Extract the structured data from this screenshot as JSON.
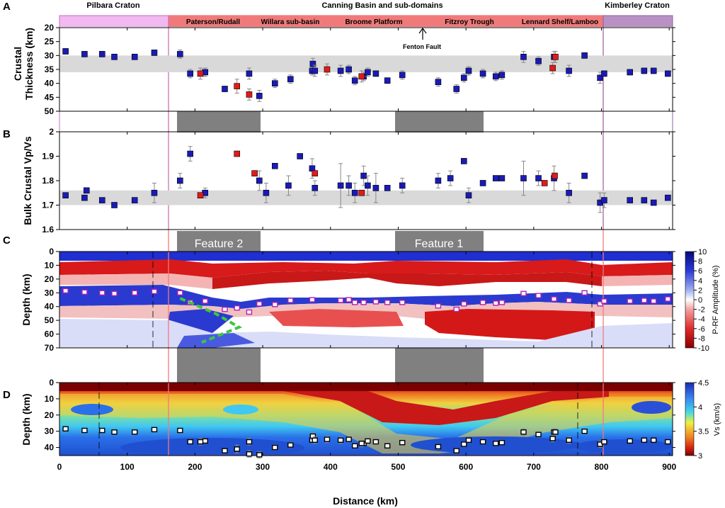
{
  "figure": {
    "panel_letters": [
      "A",
      "B",
      "C",
      "D"
    ],
    "top_labels": {
      "pilbara": "Pilbara Craton",
      "canning": "Canning  Basin  and  sub-domains",
      "kimberley": "Kimberley Craton"
    },
    "subdomains": [
      "Paterson/Rudall",
      "Willara sub-basin",
      "Broome Platform",
      "Fitzroy Trough",
      "Lennard Shelf/Lamboo"
    ],
    "fenton_fault": "Fenton Fault",
    "feature_labels": [
      "Feature 2",
      "Feature 1"
    ],
    "colors": {
      "pilbara": "#f2b8f0",
      "canning": "#f07a7a",
      "kimberley": "#b892c4",
      "marker_blue": "#1a1ab8",
      "marker_red": "#e21a1a",
      "feature_band": "#808080",
      "trace_line": "#3cc83c"
    }
  },
  "chart_data": [
    {
      "panel": "A",
      "type": "scatter",
      "ylabel": "Crustal\nThickness (km)",
      "xlabel": "",
      "xlim": [
        0,
        905
      ],
      "ylim": [
        50,
        20
      ],
      "yticks": [
        20,
        25,
        30,
        35,
        40,
        45,
        50
      ],
      "reference_band": [
        30,
        36
      ],
      "series": [
        {
          "color": "blue",
          "x": [
            9,
            37,
            63,
            81,
            111,
            140,
            178,
            193,
            215,
            244,
            280,
            295,
            318,
            341,
            373,
            374,
            377,
            415,
            427,
            436,
            449,
            455,
            467,
            484,
            506,
            559,
            586,
            597,
            604,
            625,
            644,
            653,
            685,
            707,
            730,
            752,
            775,
            798,
            804,
            842,
            863,
            877,
            898
          ],
          "y": [
            28.5,
            29.5,
            29.5,
            30.5,
            30.5,
            29,
            29.5,
            36.5,
            36,
            42,
            36.5,
            44.5,
            40,
            38.5,
            35.5,
            33,
            35.5,
            35.5,
            35,
            39,
            37.5,
            36,
            36.5,
            39,
            37,
            39.5,
            42,
            38,
            35.5,
            36.5,
            37.5,
            37,
            30.5,
            32,
            30.5,
            35.5,
            30,
            38,
            36.5,
            36,
            35.5,
            35.5,
            36.5
          ],
          "error": [
            1.0,
            1.0,
            1.0,
            1.0,
            1.0,
            1.0,
            1.5,
            1.5,
            1.5,
            1.0,
            2.0,
            2.0,
            1.5,
            1.5,
            1.5,
            2.0,
            2.0,
            2.0,
            1.5,
            1.5,
            1.5,
            1.5,
            1.0,
            1.0,
            1.5,
            1.5,
            1.5,
            1.5,
            1.5,
            1.5,
            1.5,
            1.5,
            2.0,
            1.5,
            2.0,
            2.0,
            1.0,
            2.0,
            1.0,
            1.0,
            1.0,
            1.0,
            1.0
          ]
        },
        {
          "color": "red",
          "x": [
            208,
            262,
            280,
            395,
            446,
            728,
            732
          ],
          "y": [
            36.5,
            41,
            44,
            35,
            37.5,
            34.5,
            30.5
          ],
          "error": [
            2.0,
            2.5,
            2.0,
            2.0,
            2.0,
            2.0,
            2.0
          ]
        }
      ]
    },
    {
      "panel": "B",
      "type": "scatter",
      "ylabel": "Bulk Crustal Vp/Vs",
      "xlabel": "",
      "xlim": [
        0,
        905
      ],
      "ylim": [
        1.6,
        2.0
      ],
      "yticks": [
        1.6,
        1.7,
        1.8,
        1.9,
        2
      ],
      "reference_band": [
        1.7,
        1.76
      ],
      "series": [
        {
          "color": "blue",
          "x": [
            9,
            37,
            40,
            63,
            81,
            111,
            140,
            178,
            193,
            215,
            295,
            305,
            318,
            338,
            355,
            373,
            377,
            415,
            427,
            436,
            449,
            455,
            467,
            484,
            506,
            559,
            577,
            597,
            604,
            625,
            644,
            653,
            685,
            707,
            730,
            752,
            775,
            798,
            804,
            842,
            863,
            877,
            898
          ],
          "y": [
            1.74,
            1.73,
            1.76,
            1.72,
            1.7,
            1.72,
            1.75,
            1.8,
            1.91,
            1.75,
            1.8,
            1.75,
            1.86,
            1.78,
            1.9,
            1.85,
            1.77,
            1.78,
            1.78,
            1.75,
            1.82,
            1.78,
            1.77,
            1.77,
            1.78,
            1.8,
            1.81,
            1.88,
            1.74,
            1.79,
            1.81,
            1.81,
            1.81,
            1.81,
            1.81,
            1.75,
            1.82,
            1.71,
            1.72,
            1.72,
            1.72,
            1.71,
            1.73
          ],
          "error": [
            0.01,
            0.01,
            0.01,
            0.01,
            0.01,
            0.01,
            0.04,
            0.03,
            0.03,
            0.02,
            0.04,
            0.04,
            0.01,
            0.04,
            0.01,
            0.04,
            0.03,
            0.09,
            0.04,
            0.04,
            0.04,
            0.04,
            0.06,
            0.01,
            0.03,
            0.03,
            0.03,
            0.01,
            0.03,
            0.01,
            0.01,
            0.01,
            0.07,
            0.03,
            0.05,
            0.04,
            0.01,
            0.04,
            0.03,
            0.01,
            0.01,
            0.01,
            0.01
          ]
        },
        {
          "color": "red",
          "x": [
            208,
            262,
            288,
            377,
            446,
            716,
            731
          ],
          "y": [
            1.74,
            1.91,
            1.83,
            1.83,
            1.75,
            1.79,
            1.82
          ],
          "error": [
            0,
            0,
            0,
            0,
            0,
            0,
            0
          ]
        }
      ]
    },
    {
      "panel": "C",
      "type": "heatmap",
      "ylabel": "Depth (km)",
      "xlabel": "",
      "xlim": [
        0,
        905
      ],
      "ylim": [
        70,
        0
      ],
      "yticks": [
        0,
        10,
        20,
        30,
        40,
        50,
        60,
        70
      ],
      "colorbar": {
        "label": "P-RF Amplitude (%)",
        "ticks": [
          10,
          8,
          6,
          4,
          2,
          0,
          -2,
          -4,
          -6,
          -8,
          -10
        ],
        "range": [
          -10,
          10
        ]
      },
      "moho_x": [
        9,
        37,
        63,
        81,
        111,
        140,
        178,
        193,
        215,
        244,
        262,
        280,
        295,
        318,
        341,
        373,
        415,
        427,
        436,
        449,
        467,
        484,
        506,
        559,
        586,
        597,
        625,
        644,
        653,
        685,
        707,
        730,
        752,
        775,
        798,
        804,
        842,
        863,
        877,
        898
      ],
      "moho_depth": [
        28.5,
        29.5,
        30,
        30.5,
        30,
        29,
        30,
        37,
        36,
        42,
        41,
        44,
        38,
        38.5,
        35.5,
        35,
        35.5,
        35,
        37,
        37,
        36.5,
        37,
        37,
        39.5,
        42,
        38,
        37,
        37.5,
        37,
        30.5,
        32,
        34.5,
        35.5,
        30,
        38,
        36,
        36,
        35.5,
        36,
        34.5
      ],
      "feature_2_trace_x": [
        178,
        230,
        265,
        210
      ],
      "feature_2_trace_depth": [
        34,
        45,
        55,
        66
      ]
    },
    {
      "panel": "D",
      "type": "heatmap",
      "ylabel": "Depth (km)",
      "xlabel": "Distance (km)",
      "xlim": [
        0,
        905
      ],
      "xticks": [
        0,
        100,
        200,
        300,
        400,
        500,
        600,
        700,
        800,
        900
      ],
      "ylim": [
        45,
        0
      ],
      "yticks": [
        0,
        10,
        20,
        30,
        40
      ],
      "colorbar": {
        "label": "Vs (km/s)",
        "ticks": [
          4.5,
          4,
          3.5,
          3
        ],
        "range": [
          3,
          4.5
        ]
      }
    }
  ]
}
